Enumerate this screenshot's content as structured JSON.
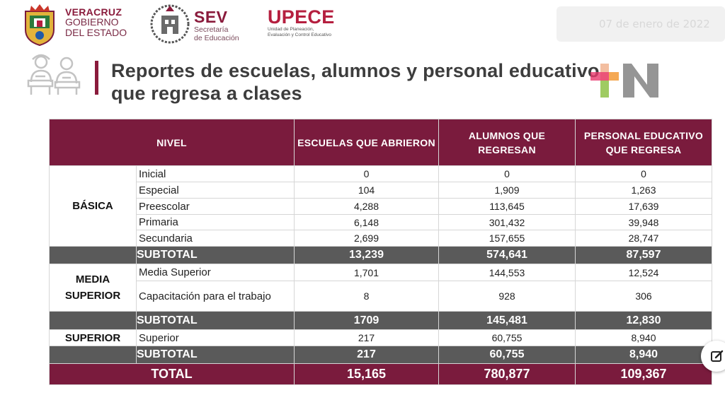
{
  "header": {
    "veracruz_line1": "VERACRUZ",
    "veracruz_line2": "GOBIERNO",
    "veracruz_line3": "DEL ESTADO",
    "sev_title": "SEV",
    "sev_sub1": "Secretaría",
    "sev_sub2": "de Educación",
    "upece_title": "UPECE",
    "upece_sub1": "Unidad de Planeación,",
    "upece_sub2": "Evaluación y Control Educativo",
    "date_text": "07 de enero de 2022"
  },
  "title": {
    "line1": "Reportes de escuelas, alumnos y personal educativo",
    "line2": "que regresa a clases"
  },
  "colors": {
    "brand": "#7a1b3d",
    "subtotal": "#5a5a5a"
  },
  "table": {
    "headers": {
      "nivel": "NIVEL",
      "escuelas": "ESCUELAS QUE ABRIERON",
      "alumnos": "ALUMNOS QUE REGRESAN",
      "personal": "PERSONAL EDUCATIVO QUE REGRESA"
    },
    "basica": {
      "group": "BÁSICA",
      "rows": [
        {
          "label": "Inicial",
          "escuelas": "0",
          "alumnos": "0",
          "personal": "0"
        },
        {
          "label": "Especial",
          "escuelas": "104",
          "alumnos": "1,909",
          "personal": "1,263"
        },
        {
          "label": "Preescolar",
          "escuelas": "4,288",
          "alumnos": "113,645",
          "personal": "17,639"
        },
        {
          "label": "Primaria",
          "escuelas": "6,148",
          "alumnos": "301,432",
          "personal": "39,948"
        },
        {
          "label": "Secundaria",
          "escuelas": "2,699",
          "alumnos": "157,655",
          "personal": "28,747"
        }
      ],
      "subtotal": {
        "label": "SUBTOTAL",
        "escuelas": "13,239",
        "alumnos": "574,641",
        "personal": "87,597"
      }
    },
    "media": {
      "group_line1": "MEDIA",
      "group_line2": "SUPERIOR",
      "rows": [
        {
          "label": "Media Superior",
          "escuelas": "1,701",
          "alumnos": "144,553",
          "personal": "12,524"
        },
        {
          "label": "Capacitación para el trabajo",
          "escuelas": "8",
          "alumnos": "928",
          "personal": "306"
        }
      ],
      "subtotal": {
        "label": "SUBTOTAL",
        "escuelas": "1709",
        "alumnos": "145,481",
        "personal": "12,830"
      }
    },
    "superior": {
      "group": "SUPERIOR",
      "rows": [
        {
          "label": "Superior",
          "escuelas": "217",
          "alumnos": "60,755",
          "personal": "8,940"
        }
      ],
      "subtotal": {
        "label": "SUBTOTAL",
        "escuelas": "217",
        "alumnos": "60,755",
        "personal": "8,940"
      }
    },
    "total": {
      "label": "TOTAL",
      "escuelas": "15,165",
      "alumnos": "780,877",
      "personal": "109,367"
    }
  }
}
